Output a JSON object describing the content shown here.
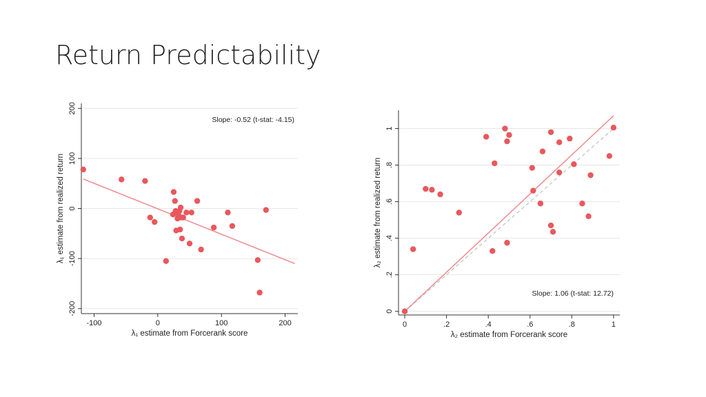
{
  "slide": {
    "title": "Return Predictability"
  },
  "colors": {
    "point": "#e8585c",
    "fit": "#f08a8e",
    "diagonal": "#b8c4b8",
    "grid": "#e6e6e6",
    "axis": "#333333"
  },
  "chart_data": [
    {
      "type": "scatter",
      "annotation": "Slope: -0.52 (t-stat: -4.15)",
      "xlabel": "λ₁ estimate from Forcerank score",
      "ylabel": "λ₁ estimate from realized return",
      "xlim": [
        -120,
        220
      ],
      "ylim": [
        -210,
        210
      ],
      "xticks": [
        -100,
        0,
        100,
        200
      ],
      "xtick_labels": [
        "-100",
        "0",
        "100",
        "200"
      ],
      "yticks": [
        -200,
        -100,
        0,
        100,
        200
      ],
      "ytick_labels": [
        "-200",
        "-100",
        "0",
        "100",
        "200"
      ],
      "grid": true,
      "points": [
        [
          -117,
          78
        ],
        [
          -57,
          58
        ],
        [
          -20,
          55
        ],
        [
          -12,
          -18
        ],
        [
          -5,
          -27
        ],
        [
          13,
          -105
        ],
        [
          24,
          -12
        ],
        [
          25,
          33
        ],
        [
          27,
          15
        ],
        [
          28,
          -5
        ],
        [
          29,
          -44
        ],
        [
          30,
          -8
        ],
        [
          31,
          -20
        ],
        [
          33,
          -15
        ],
        [
          34,
          -5
        ],
        [
          35,
          -42
        ],
        [
          36,
          2
        ],
        [
          37,
          -18
        ],
        [
          38,
          -60
        ],
        [
          40,
          -18
        ],
        [
          45,
          -8
        ],
        [
          50,
          -70
        ],
        [
          53,
          -8
        ],
        [
          62,
          15
        ],
        [
          68,
          -82
        ],
        [
          88,
          -38
        ],
        [
          110,
          -8
        ],
        [
          117,
          -35
        ],
        [
          157,
          -103
        ],
        [
          160,
          -168
        ],
        [
          170,
          -3
        ]
      ],
      "fit_line": {
        "x": [
          -117,
          215
        ],
        "y": [
          59,
          -110
        ]
      }
    },
    {
      "type": "scatter",
      "annotation": "Slope: 1.06 (t-stat: 12.72)",
      "xlabel": "λ₂ estimate from Forcerank score",
      "ylabel": "λ₂ estimate from realized return",
      "xlim": [
        -0.03,
        1.03
      ],
      "ylim": [
        -0.02,
        1.1
      ],
      "xticks": [
        0,
        0.2,
        0.4,
        0.6,
        0.8,
        1
      ],
      "xtick_labels": [
        "0",
        ".2",
        ".4",
        ".6",
        ".8",
        "1"
      ],
      "yticks": [
        0,
        0.2,
        0.4,
        0.6,
        0.8,
        1
      ],
      "ytick_labels": [
        "0",
        ".2",
        ".4",
        ".6",
        ".8",
        "1"
      ],
      "grid": true,
      "points": [
        [
          0,
          0
        ],
        [
          0.04,
          0.34
        ],
        [
          0.1,
          0.67
        ],
        [
          0.13,
          0.665
        ],
        [
          0.17,
          0.64
        ],
        [
          0.26,
          0.54
        ],
        [
          0.39,
          0.955
        ],
        [
          0.42,
          0.33
        ],
        [
          0.43,
          0.81
        ],
        [
          0.48,
          1.0
        ],
        [
          0.49,
          0.93
        ],
        [
          0.49,
          0.375
        ],
        [
          0.5,
          0.965
        ],
        [
          0.61,
          0.785
        ],
        [
          0.615,
          0.66
        ],
        [
          0.65,
          0.59
        ],
        [
          0.66,
          0.875
        ],
        [
          0.7,
          0.98
        ],
        [
          0.7,
          0.47
        ],
        [
          0.71,
          0.435
        ],
        [
          0.74,
          0.925
        ],
        [
          0.74,
          0.76
        ],
        [
          0.79,
          0.945
        ],
        [
          0.81,
          0.805
        ],
        [
          0.85,
          0.59
        ],
        [
          0.88,
          0.52
        ],
        [
          0.89,
          0.745
        ],
        [
          0.98,
          0.85
        ],
        [
          1.0,
          1.005
        ]
      ],
      "fit_line": {
        "x": [
          0,
          1.0
        ],
        "y": [
          0,
          1.07
        ]
      },
      "diagonal": {
        "x": [
          0,
          1.0
        ],
        "y": [
          0,
          1.0
        ]
      }
    }
  ]
}
